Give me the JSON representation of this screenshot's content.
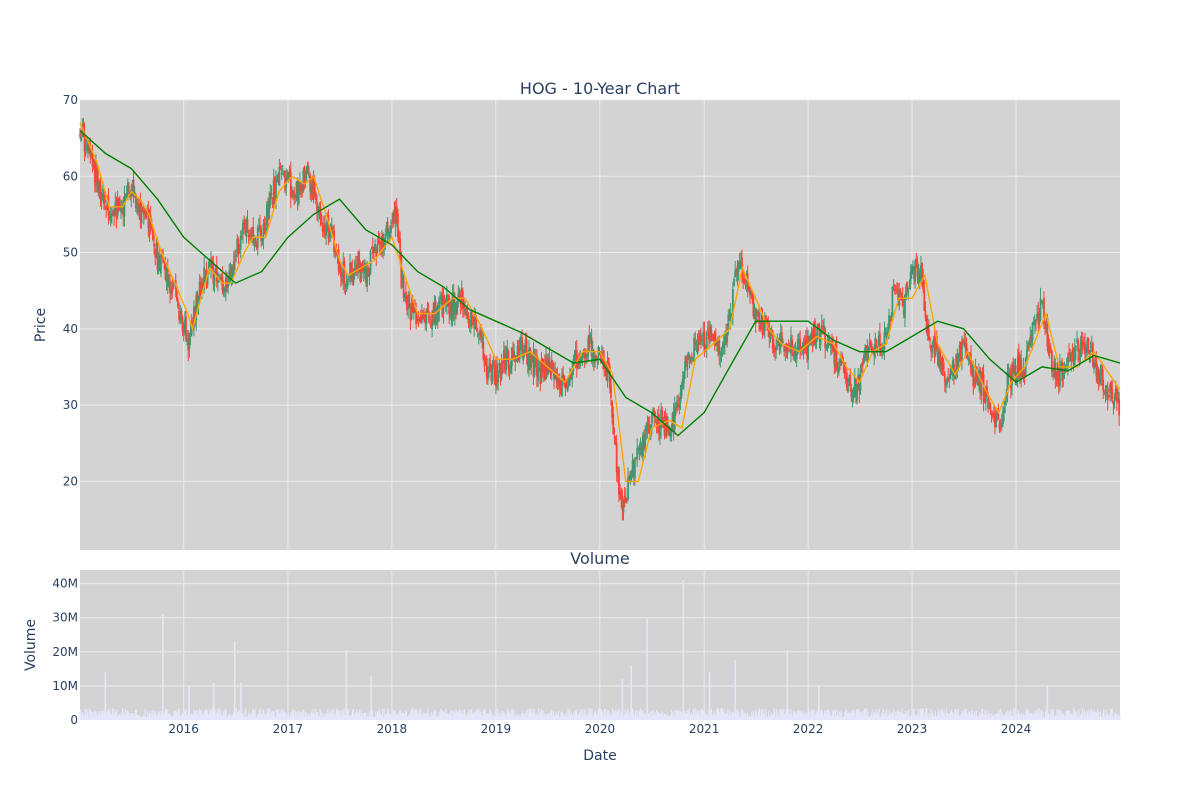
{
  "colors": {
    "plot_bg": "#d3d3d3",
    "grid": "#ebebeb",
    "increasing": "#3d9970",
    "decreasing": "#ff4136",
    "ma_short": "#ffa500",
    "ma_long": "#008000",
    "volume": "#e6e6fa",
    "text": "#2a3f5f"
  },
  "chart_data": [
    {
      "type": "candlestick",
      "title": "HOG - 10-Year Chart",
      "ylabel": "Price",
      "ylim": [
        11,
        70
      ],
      "yticks": [
        20,
        30,
        40,
        50,
        60,
        70
      ],
      "xrange": [
        "2015-01-02",
        "2024-12-31"
      ],
      "x_tick_labels": [
        "2016",
        "2017",
        "2018",
        "2019",
        "2020",
        "2021",
        "2022",
        "2023",
        "2024"
      ],
      "grid": true,
      "close_series": [
        [
          "2015-01-02",
          66
        ],
        [
          "2015-02-01",
          63
        ],
        [
          "2015-03-01",
          60
        ],
        [
          "2015-04-01",
          56
        ],
        [
          "2015-05-01",
          55
        ],
        [
          "2015-06-01",
          56
        ],
        [
          "2015-07-01",
          59
        ],
        [
          "2015-08-01",
          55
        ],
        [
          "2015-09-01",
          54
        ],
        [
          "2015-10-01",
          49
        ],
        [
          "2015-11-01",
          47
        ],
        [
          "2015-12-01",
          45
        ],
        [
          "2016-01-15",
          38
        ],
        [
          "2016-02-01",
          41
        ],
        [
          "2016-03-01",
          46
        ],
        [
          "2016-04-01",
          48
        ],
        [
          "2016-05-01",
          46
        ],
        [
          "2016-06-01",
          45
        ],
        [
          "2016-07-01",
          50
        ],
        [
          "2016-08-01",
          53
        ],
        [
          "2016-09-01",
          52
        ],
        [
          "2016-10-01",
          52
        ],
        [
          "2016-11-01",
          57
        ],
        [
          "2016-12-01",
          60
        ],
        [
          "2017-01-01",
          59
        ],
        [
          "2017-02-01",
          58
        ],
        [
          "2017-03-01",
          61
        ],
        [
          "2017-04-01",
          58
        ],
        [
          "2017-05-01",
          54
        ],
        [
          "2017-06-01",
          53
        ],
        [
          "2017-07-01",
          48
        ],
        [
          "2017-08-01",
          47
        ],
        [
          "2017-09-01",
          48
        ],
        [
          "2017-10-01",
          47
        ],
        [
          "2017-11-01",
          50
        ],
        [
          "2017-12-01",
          52
        ],
        [
          "2018-01-15",
          55
        ],
        [
          "2018-02-01",
          47
        ],
        [
          "2018-03-01",
          43
        ],
        [
          "2018-04-01",
          42
        ],
        [
          "2018-05-01",
          41
        ],
        [
          "2018-06-01",
          42
        ],
        [
          "2018-07-01",
          43
        ],
        [
          "2018-08-01",
          43
        ],
        [
          "2018-09-01",
          44
        ],
        [
          "2018-10-01",
          41
        ],
        [
          "2018-11-01",
          40
        ],
        [
          "2018-12-01",
          34
        ],
        [
          "2019-01-01",
          34
        ],
        [
          "2019-02-01",
          36
        ],
        [
          "2019-03-01",
          36
        ],
        [
          "2019-04-01",
          38
        ],
        [
          "2019-05-01",
          36
        ],
        [
          "2019-06-01",
          34
        ],
        [
          "2019-07-01",
          35
        ],
        [
          "2019-08-01",
          34
        ],
        [
          "2019-09-01",
          32
        ],
        [
          "2019-10-01",
          35
        ],
        [
          "2019-11-01",
          38
        ],
        [
          "2019-12-01",
          37
        ],
        [
          "2020-01-01",
          36
        ],
        [
          "2020-02-01",
          34
        ],
        [
          "2020-03-01",
          22
        ],
        [
          "2020-03-20",
          16
        ],
        [
          "2020-04-01",
          18
        ],
        [
          "2020-05-01",
          22
        ],
        [
          "2020-06-01",
          25
        ],
        [
          "2020-07-01",
          28
        ],
        [
          "2020-08-01",
          28
        ],
        [
          "2020-09-01",
          26
        ],
        [
          "2020-10-01",
          30
        ],
        [
          "2020-11-01",
          36
        ],
        [
          "2020-12-01",
          38
        ],
        [
          "2021-01-01",
          38
        ],
        [
          "2021-02-01",
          40
        ],
        [
          "2021-03-01",
          36
        ],
        [
          "2021-04-01",
          42
        ],
        [
          "2021-05-01",
          49
        ],
        [
          "2021-06-01",
          46
        ],
        [
          "2021-07-01",
          42
        ],
        [
          "2021-08-01",
          40
        ],
        [
          "2021-09-01",
          38
        ],
        [
          "2021-10-01",
          38
        ],
        [
          "2021-11-01",
          38
        ],
        [
          "2021-12-01",
          37
        ],
        [
          "2022-01-01",
          38
        ],
        [
          "2022-02-01",
          40
        ],
        [
          "2022-03-01",
          39
        ],
        [
          "2022-04-01",
          37
        ],
        [
          "2022-05-01",
          35
        ],
        [
          "2022-06-01",
          32
        ],
        [
          "2022-07-01",
          33
        ],
        [
          "2022-08-01",
          38
        ],
        [
          "2022-09-01",
          38
        ],
        [
          "2022-10-01",
          38
        ],
        [
          "2022-11-01",
          46
        ],
        [
          "2022-12-01",
          43
        ],
        [
          "2023-01-01",
          47
        ],
        [
          "2023-02-01",
          48
        ],
        [
          "2023-03-01",
          38
        ],
        [
          "2023-04-01",
          37
        ],
        [
          "2023-05-01",
          33
        ],
        [
          "2023-06-01",
          35
        ],
        [
          "2023-07-01",
          38
        ],
        [
          "2023-08-01",
          34
        ],
        [
          "2023-09-01",
          33
        ],
        [
          "2023-10-01",
          29
        ],
        [
          "2023-11-01",
          27
        ],
        [
          "2023-12-01",
          33
        ],
        [
          "2024-01-01",
          35
        ],
        [
          "2024-02-01",
          35
        ],
        [
          "2024-03-01",
          40
        ],
        [
          "2024-04-01",
          43
        ],
        [
          "2024-05-01",
          36
        ],
        [
          "2024-06-01",
          34
        ],
        [
          "2024-07-01",
          36
        ],
        [
          "2024-08-01",
          37
        ],
        [
          "2024-09-01",
          38
        ],
        [
          "2024-10-01",
          36
        ],
        [
          "2024-11-01",
          33
        ],
        [
          "2024-12-31",
          30
        ]
      ],
      "ma_short": [
        [
          "2015-01-02",
          67
        ],
        [
          "2015-03-01",
          62
        ],
        [
          "2015-04-15",
          56
        ],
        [
          "2015-06-01",
          56
        ],
        [
          "2015-07-01",
          58
        ],
        [
          "2015-08-01",
          57
        ],
        [
          "2015-09-01",
          55
        ],
        [
          "2015-10-15",
          50
        ],
        [
          "2015-12-01",
          46
        ],
        [
          "2016-01-15",
          42
        ],
        [
          "2016-02-01",
          40
        ],
        [
          "2016-03-01",
          44
        ],
        [
          "2016-04-01",
          48
        ],
        [
          "2016-05-15",
          46
        ],
        [
          "2016-06-15",
          46
        ],
        [
          "2016-08-01",
          50
        ],
        [
          "2016-09-01",
          52
        ],
        [
          "2016-10-15",
          52
        ],
        [
          "2016-12-01",
          58
        ],
        [
          "2017-01-15",
          60
        ],
        [
          "2017-03-01",
          59
        ],
        [
          "2017-04-01",
          60
        ],
        [
          "2017-05-15",
          55
        ],
        [
          "2017-07-01",
          49
        ],
        [
          "2017-08-01",
          47
        ],
        [
          "2017-09-15",
          48
        ],
        [
          "2017-11-01",
          49
        ],
        [
          "2018-01-01",
          52
        ],
        [
          "2018-02-15",
          47
        ],
        [
          "2018-04-01",
          42
        ],
        [
          "2018-06-01",
          42
        ],
        [
          "2018-08-01",
          44
        ],
        [
          "2018-09-15",
          44
        ],
        [
          "2018-11-01",
          41
        ],
        [
          "2019-01-01",
          36
        ],
        [
          "2019-03-01",
          36
        ],
        [
          "2019-05-01",
          37
        ],
        [
          "2019-07-01",
          35
        ],
        [
          "2019-09-01",
          33
        ],
        [
          "2019-11-01",
          37
        ],
        [
          "2020-01-01",
          37
        ],
        [
          "2020-02-15",
          34
        ],
        [
          "2020-04-01",
          20
        ],
        [
          "2020-05-15",
          20
        ],
        [
          "2020-07-01",
          27
        ],
        [
          "2020-09-01",
          28
        ],
        [
          "2020-10-15",
          27
        ],
        [
          "2020-12-01",
          36
        ],
        [
          "2021-02-01",
          38
        ],
        [
          "2021-04-01",
          40
        ],
        [
          "2021-05-15",
          48
        ],
        [
          "2021-07-01",
          44
        ],
        [
          "2021-08-15",
          40
        ],
        [
          "2021-10-01",
          38
        ],
        [
          "2021-12-01",
          37
        ],
        [
          "2022-02-01",
          39
        ],
        [
          "2022-04-01",
          38
        ],
        [
          "2022-05-15",
          35
        ],
        [
          "2022-07-01",
          33
        ],
        [
          "2022-08-15",
          37
        ],
        [
          "2022-10-01",
          38
        ],
        [
          "2022-11-15",
          44
        ],
        [
          "2023-01-01",
          44
        ],
        [
          "2023-02-15",
          47
        ],
        [
          "2023-04-01",
          38
        ],
        [
          "2023-06-01",
          34
        ],
        [
          "2023-07-15",
          37
        ],
        [
          "2023-09-15",
          32
        ],
        [
          "2023-11-01",
          29
        ],
        [
          "2023-12-15",
          33
        ],
        [
          "2024-02-01",
          35
        ],
        [
          "2024-04-15",
          42
        ],
        [
          "2024-06-01",
          35
        ],
        [
          "2024-08-01",
          35
        ],
        [
          "2024-10-01",
          37
        ],
        [
          "2024-12-31",
          32
        ]
      ],
      "ma_long": [
        [
          "2015-01-02",
          66
        ],
        [
          "2015-04-01",
          63
        ],
        [
          "2015-07-01",
          61
        ],
        [
          "2015-10-01",
          57
        ],
        [
          "2016-01-01",
          52
        ],
        [
          "2016-04-01",
          49
        ],
        [
          "2016-07-01",
          46
        ],
        [
          "2016-10-01",
          47.5
        ],
        [
          "2017-01-01",
          52
        ],
        [
          "2017-04-01",
          55
        ],
        [
          "2017-07-01",
          57
        ],
        [
          "2017-10-01",
          53
        ],
        [
          "2018-01-01",
          51
        ],
        [
          "2018-04-01",
          47.5
        ],
        [
          "2018-07-01",
          45.5
        ],
        [
          "2018-10-01",
          42.5
        ],
        [
          "2019-01-01",
          41
        ],
        [
          "2019-04-01",
          39.5
        ],
        [
          "2019-07-01",
          37.5
        ],
        [
          "2019-10-01",
          35.5
        ],
        [
          "2020-01-01",
          36
        ],
        [
          "2020-04-01",
          31
        ],
        [
          "2020-07-01",
          29
        ],
        [
          "2020-10-01",
          26
        ],
        [
          "2021-01-01",
          29
        ],
        [
          "2021-04-01",
          35
        ],
        [
          "2021-07-01",
          41
        ],
        [
          "2021-10-01",
          41
        ],
        [
          "2022-01-01",
          41
        ],
        [
          "2022-04-01",
          38.5
        ],
        [
          "2022-07-01",
          37
        ],
        [
          "2022-10-01",
          37
        ],
        [
          "2023-01-01",
          39
        ],
        [
          "2023-04-01",
          41
        ],
        [
          "2023-07-01",
          40
        ],
        [
          "2023-10-01",
          36
        ],
        [
          "2024-01-01",
          33
        ],
        [
          "2024-04-01",
          35
        ],
        [
          "2024-07-01",
          34.5
        ],
        [
          "2024-10-01",
          36.5
        ],
        [
          "2024-12-31",
          35.5
        ]
      ]
    },
    {
      "type": "bar",
      "title": "Volume",
      "xlabel": "Date",
      "ylabel": "Volume",
      "ylim": [
        0,
        44000000
      ],
      "yticks": [
        0,
        10000000,
        20000000,
        30000000,
        40000000
      ],
      "ytick_labels": [
        "0",
        "10M",
        "20M",
        "30M",
        "40M"
      ],
      "baseline": 2500000,
      "spikes": [
        [
          "2015-04-01",
          14000000
        ],
        [
          "2015-10-20",
          31000000
        ],
        [
          "2016-01-20",
          10000000
        ],
        [
          "2016-04-15",
          11000000
        ],
        [
          "2016-06-28",
          23000000
        ],
        [
          "2016-07-20",
          11000000
        ],
        [
          "2017-07-25",
          20500000
        ],
        [
          "2017-10-20",
          13000000
        ],
        [
          "2020-03-20",
          12000000
        ],
        [
          "2020-04-20",
          16000000
        ],
        [
          "2020-06-15",
          30000000
        ],
        [
          "2020-10-20",
          41000000
        ],
        [
          "2021-01-20",
          14000000
        ],
        [
          "2021-04-20",
          17500000
        ],
        [
          "2021-10-20",
          20500000
        ],
        [
          "2022-02-08",
          10000000
        ],
        [
          "2024-04-20",
          10000000
        ]
      ]
    }
  ]
}
